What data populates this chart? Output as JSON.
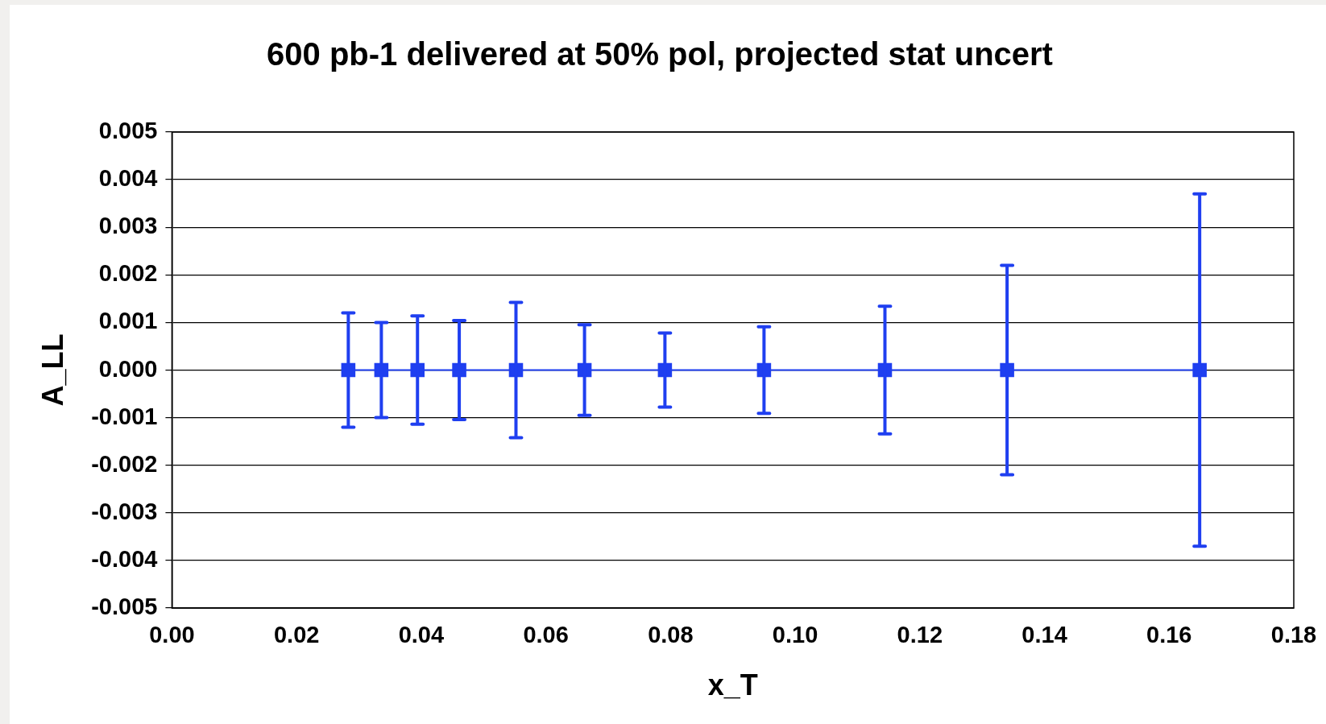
{
  "chart_data": {
    "type": "line",
    "title": "600 pb-1 delivered at 50% pol, projected stat uncert",
    "xlabel": "x_T",
    "ylabel": "A_LL",
    "x": [
      0.0283,
      0.0336,
      0.0394,
      0.0461,
      0.0552,
      0.0662,
      0.0791,
      0.095,
      0.1144,
      0.134,
      0.1649
    ],
    "series": [
      {
        "color": "#1f3ff0",
        "values": [
          0,
          0,
          0,
          0,
          0,
          0,
          0,
          0,
          0,
          0,
          0
        ],
        "errors": [
          0.0012,
          0.001,
          0.00114,
          0.00104,
          0.00142,
          0.00095,
          0.00078,
          0.00091,
          0.00134,
          0.0022,
          0.0037
        ]
      }
    ],
    "xlim": [
      0,
      0.18
    ],
    "xticks": [
      {
        "value": 0,
        "label": "0.00"
      },
      0.02,
      0.04,
      0.06,
      0.08,
      {
        "value": 0.1,
        "label": "0.10"
      },
      0.12,
      0.14,
      0.16,
      0.18
    ],
    "ylim": [
      -0.005,
      0.005
    ],
    "yticks": [
      -0.005,
      -0.004,
      -0.003,
      -0.002,
      -0.001,
      {
        "value": 0,
        "label": "0.000"
      },
      0.001,
      0.002,
      0.003,
      0.004,
      0.005
    ],
    "grid": "y",
    "legend": false,
    "marker": "square",
    "line_style": "solid"
  }
}
